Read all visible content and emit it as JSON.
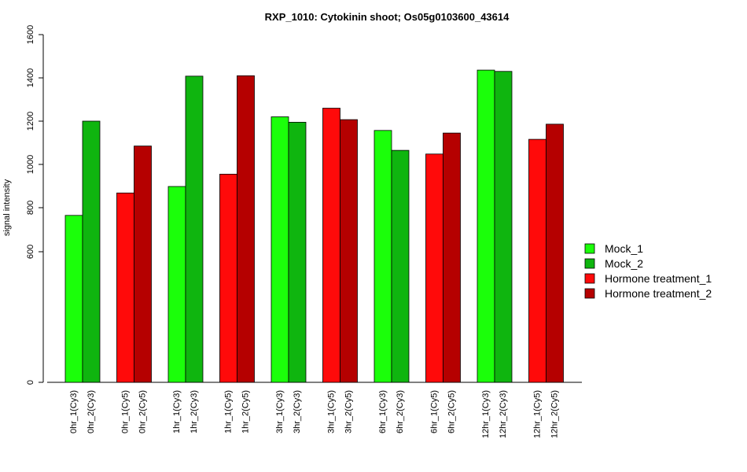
{
  "chart_data": {
    "type": "bar",
    "title": "RXP_1010: Cytokinin shoot; Os05g0103600_43614",
    "xlabel": "",
    "ylabel": "signal intensity",
    "y_ticks": [
      "0",
      "600",
      "800",
      "1000",
      "1200",
      "1400",
      "1600"
    ],
    "y_tick_values": [
      0,
      600,
      800,
      1000,
      1200,
      1400,
      1600
    ],
    "y_scale_note": "nonlinear axis: 0 to 600 compressed",
    "ylim": [
      0,
      1600
    ],
    "legend": {
      "placement": "right",
      "entries": [
        {
          "label": "Mock_1",
          "color": "#1bff0a"
        },
        {
          "label": "Mock_2",
          "color": "#0fb50f"
        },
        {
          "label": "Hormone treatment_1",
          "color": "#ff0a0a"
        },
        {
          "label": "Hormone treatment_2",
          "color": "#b50000"
        }
      ]
    },
    "groups": [
      {
        "bars": [
          {
            "label": "0hr_1(Cy3)",
            "value": 765,
            "series": 0
          },
          {
            "label": "0hr_2(Cy3)",
            "value": 1200,
            "series": 1
          }
        ]
      },
      {
        "bars": [
          {
            "label": "0hr_1(Cy5)",
            "value": 868,
            "series": 2
          },
          {
            "label": "0hr_2(Cy5)",
            "value": 1085,
            "series": 3
          }
        ]
      },
      {
        "bars": [
          {
            "label": "1hr_1(Cy3)",
            "value": 898,
            "series": 0
          },
          {
            "label": "1hr_2(Cy3)",
            "value": 1408,
            "series": 1
          }
        ]
      },
      {
        "bars": [
          {
            "label": "1hr_1(Cy5)",
            "value": 955,
            "series": 2
          },
          {
            "label": "1hr_2(Cy5)",
            "value": 1410,
            "series": 3
          }
        ]
      },
      {
        "bars": [
          {
            "label": "3hr_1(Cy3)",
            "value": 1220,
            "series": 0
          },
          {
            "label": "3hr_2(Cy3)",
            "value": 1195,
            "series": 1
          }
        ]
      },
      {
        "bars": [
          {
            "label": "3hr_1(Cy5)",
            "value": 1260,
            "series": 2
          },
          {
            "label": "3hr_2(Cy5)",
            "value": 1207,
            "series": 3
          }
        ]
      },
      {
        "bars": [
          {
            "label": "6hr_1(Cy3)",
            "value": 1157,
            "series": 0
          },
          {
            "label": "6hr_2(Cy3)",
            "value": 1065,
            "series": 1
          }
        ]
      },
      {
        "bars": [
          {
            "label": "6hr_1(Cy5)",
            "value": 1048,
            "series": 2
          },
          {
            "label": "6hr_2(Cy5)",
            "value": 1145,
            "series": 3
          }
        ]
      },
      {
        "bars": [
          {
            "label": "12hr_1(Cy3)",
            "value": 1436,
            "series": 0
          },
          {
            "label": "12hr_2(Cy3)",
            "value": 1430,
            "series": 1
          }
        ]
      },
      {
        "bars": [
          {
            "label": "12hr_1(Cy5)",
            "value": 1116,
            "series": 2
          },
          {
            "label": "12hr_2(Cy5)",
            "value": 1186,
            "series": 3
          }
        ]
      }
    ]
  }
}
